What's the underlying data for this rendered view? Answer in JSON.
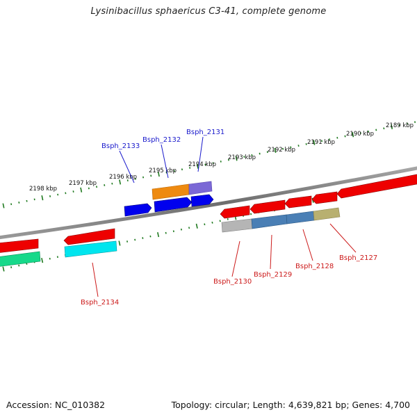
{
  "title": "Lysinibacillus sphaericus C3-41, complete genome",
  "footer": {
    "accession": "Accession: NC_010382",
    "topology": "Topology: circular; Length: 4,639,821 bp; Genes: 4,700"
  },
  "ruler": {
    "labels": [
      "2198 kbp",
      "2197 kbp",
      "2196 kbp",
      "2195 kbp",
      "2194 kbp",
      "2193 kbp",
      "2192 kbp",
      "2191 kbp",
      "2190 kbp",
      "2189 kbp"
    ]
  },
  "genes_upper": [
    {
      "label": "Bsph_2133",
      "color": "#1a1acc"
    },
    {
      "label": "Bsph_2132",
      "color": "#1a1acc"
    },
    {
      "label": "Bsph_2131",
      "color": "#1a1acc"
    }
  ],
  "genes_lower": [
    {
      "label": "Bsph_2134",
      "color": "#cc1a1a"
    },
    {
      "label": "Bsph_2130",
      "color": "#cc1a1a"
    },
    {
      "label": "Bsph_2129",
      "color": "#cc1a1a"
    },
    {
      "label": "Bsph_2128",
      "color": "#cc1a1a"
    },
    {
      "label": "Bsph_2127",
      "color": "#cc1a1a"
    }
  ],
  "colors": {
    "backbone": "#7a7a7a",
    "tick": "#1f7a1f",
    "cds_forward": "#0000ee",
    "cds_reverse": "#ee0000",
    "orange": "#ee8a10",
    "purple": "#7b68d6",
    "cyan": "#00e5ee",
    "green": "#17d98a",
    "grey": "#b5b5b5",
    "steel": "#4a7fb5",
    "khaki": "#b8b070"
  }
}
